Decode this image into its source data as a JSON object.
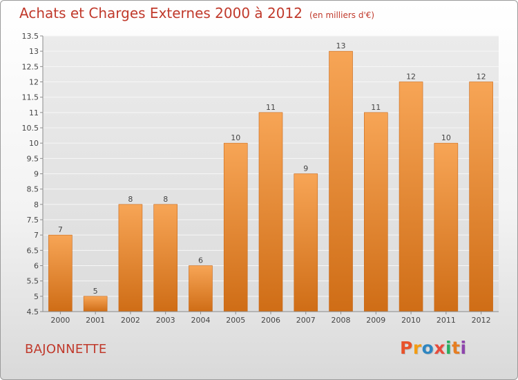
{
  "header": {
    "title": "Achats et Charges Externes 2000 à 2012",
    "unit": "(en milliers d'€)"
  },
  "footer": {
    "commune": "BAJONNETTE",
    "logo_text": "Proxiti",
    "logo_colors": [
      "#e8522a",
      "#f39c12",
      "#2e86c1",
      "#e74c3c",
      "#27ae60",
      "#e67e22",
      "#8e44ad"
    ]
  },
  "chart_data": {
    "type": "bar",
    "title": "Achats et Charges Externes 2000 à 2012",
    "xlabel": "",
    "ylabel": "",
    "categories": [
      "2000",
      "2001",
      "2002",
      "2003",
      "2004",
      "2005",
      "2006",
      "2007",
      "2008",
      "2009",
      "2010",
      "2011",
      "2012"
    ],
    "values": [
      7,
      5,
      8,
      8,
      6,
      10,
      11,
      9,
      13,
      11,
      12,
      10,
      12
    ],
    "ylim": [
      4.5,
      13.5
    ],
    "yticks": [
      "4.5",
      "5",
      "5.5",
      "6",
      "6.5",
      "7",
      "7.5",
      "8",
      "8.5",
      "9",
      "9.5",
      "10",
      "10.5",
      "11",
      "11.5",
      "12",
      "12.5",
      "13",
      "13.5"
    ],
    "grid": true,
    "bar_color": "#f0892f"
  }
}
